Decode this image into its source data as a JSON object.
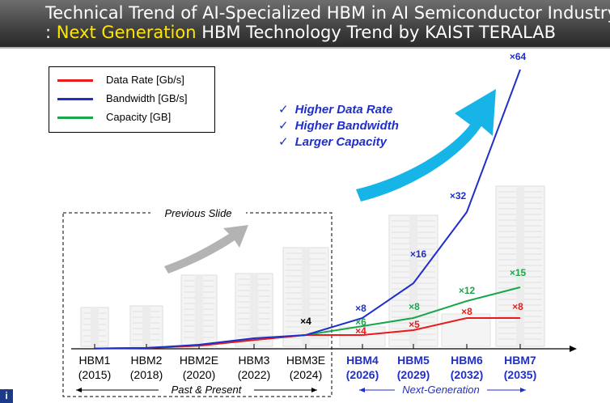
{
  "header": {
    "title_line1": "Technical Trend of AI-Specialized HBM in AI Semiconductor Industry",
    "title_line2_prefix": ": ",
    "title_line2_highlight": "Next Generation",
    "title_line2_suffix": " HBM Technology Trend by KAIST TERALAB"
  },
  "colors": {
    "data_rate": "#e81c1c",
    "bandwidth": "#1f2fc8",
    "capacity": "#1aa64a",
    "highlight": "#ffe600",
    "arrow_blue": "#17b4e8",
    "arrow_gray": "#b3b3b3"
  },
  "legend": [
    {
      "label": "Data Rate [Gb/s]",
      "color": "#e81c1c"
    },
    {
      "label": "Bandwidth [GB/s]",
      "color": "#1f2fc8"
    },
    {
      "label": "Capacity [GB]",
      "color": "#1aa64a"
    }
  ],
  "checks": [
    "Higher Data Rate",
    "Higher Bandwidth",
    "Larger Capacity"
  ],
  "check_mark": "✓",
  "chart_data": {
    "type": "line",
    "title": "",
    "categories": [
      "HBM1",
      "HBM2",
      "HBM2E",
      "HBM3",
      "HBM3E",
      "HBM4",
      "HBM5",
      "HBM6",
      "HBM7"
    ],
    "years": [
      "(2015)",
      "(2018)",
      "(2020)",
      "(2022)",
      "(2024)",
      "(2026)",
      "(2029)",
      "(2032)",
      "(2035)"
    ],
    "series": [
      {
        "name": "Bandwidth",
        "values": [
          0.2,
          0.5,
          1.5,
          3,
          4,
          8,
          16,
          32,
          64
        ]
      },
      {
        "name": "Capacity",
        "values": [
          0.2,
          0.5,
          1.2,
          2.6,
          4,
          6,
          8,
          12,
          15
        ]
      },
      {
        "name": "Data Rate",
        "values": [
          0.2,
          0.5,
          1.2,
          2.6,
          4,
          4,
          5,
          8,
          8
        ]
      }
    ],
    "annotations": {
      "hbm3e": "×4",
      "bandwidth": [
        "×8",
        "×16",
        "×32",
        "×64"
      ],
      "capacity": [
        "×6",
        "×8",
        "×12",
        "×15"
      ],
      "data_rate": [
        "×4",
        "×5",
        "×8",
        "×8"
      ]
    },
    "group_labels": {
      "previous": "Previous Slide",
      "past": "Past & Present",
      "next": "Next-Generation"
    }
  }
}
